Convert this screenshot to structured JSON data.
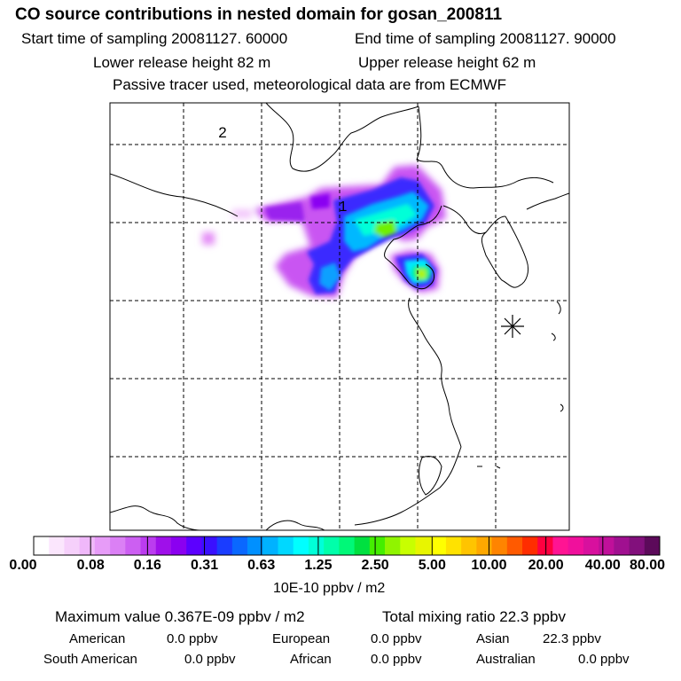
{
  "header": {
    "title": "CO  source contributions in nested domain for gosan_200811",
    "start_time": "Start time of sampling 20081127. 60000",
    "end_time": "End time of sampling 20081127. 90000",
    "lower_height": "Lower release height   82 m",
    "upper_height": "Upper release height   62 m",
    "note": "Passive tracer used, meteorological data are from ECMWF"
  },
  "map": {
    "labels": [
      "2",
      "1"
    ]
  },
  "colorbar": {
    "colors": [
      "#ffffff",
      "#fbe6fd",
      "#f6d0fb",
      "#f0b8fa",
      "#e79cf8",
      "#db80f5",
      "#cc5ff2",
      "#bb3cef",
      "#9f10ea",
      "#8b00f0",
      "#5c00ff",
      "#3a10ff",
      "#1a3dff",
      "#0a68ff",
      "#0090ff",
      "#00b2ff",
      "#00d8ff",
      "#00ffff",
      "#00ffd8",
      "#00ffaa",
      "#00f878",
      "#00e040",
      "#44ee00",
      "#90f400",
      "#c8ff00",
      "#e8f500",
      "#ffff00",
      "#ffe200",
      "#ffc400",
      "#ffa800",
      "#ff8400",
      "#ff5a00",
      "#ff2d00",
      "#ff0040",
      "#ff1493",
      "#f0109c",
      "#d8109e",
      "#c0109a",
      "#a01090",
      "#82107c",
      "#5c0a5a"
    ],
    "tick_labels": [
      "0.00",
      "0.08",
      "0.16",
      "0.31",
      "0.63",
      "1.25",
      "2.50",
      "5.00",
      "10.00",
      "20.00",
      "40.00",
      "80.00"
    ],
    "units": "10E-10 ppbv / m2"
  },
  "footer": {
    "max_value": "Maximum value  0.367E-09 ppbv / m2",
    "total_mixing": "Total mixing ratio        22.3 ppbv",
    "american_label": "American",
    "american_value": "0.0 ppbv",
    "european_label": "European",
    "european_value": "0.0 ppbv",
    "asian_label": "Asian",
    "asian_value": "22.3 ppbv",
    "south_american_label": "South American",
    "south_american_value": "0.0 ppbv",
    "african_label": "African",
    "african_value": "0.0 ppbv",
    "australian_label": "Australian",
    "australian_value": "0.0 ppbv"
  }
}
